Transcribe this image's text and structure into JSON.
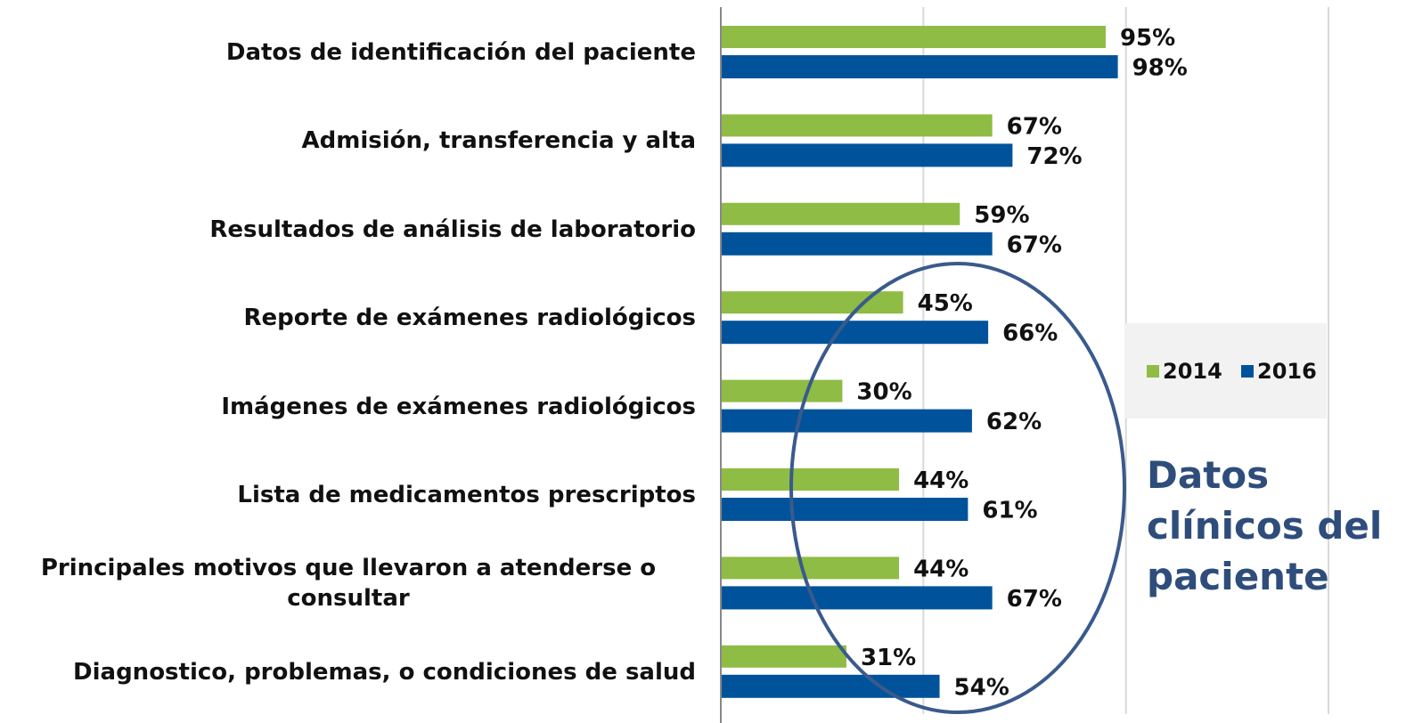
{
  "chart_data": {
    "type": "bar",
    "orientation": "horizontal",
    "categories": [
      "Datos de identificación del paciente",
      "Admisión, transferencia y alta",
      "Resultados de análisis de laboratorio",
      "Reporte de exámenes radiológicos",
      "Imágenes de exámenes radiológicos",
      "Lista de medicamentos prescriptos",
      "Principales motivos que llevaron a atenderse o consultar",
      "Diagnostico, problemas, o condiciones de salud"
    ],
    "series": [
      {
        "name": "2014",
        "color": "#8fbc45",
        "values": [
          95,
          67,
          59,
          45,
          30,
          44,
          44,
          31
        ],
        "value_labels": [
          "95%",
          "67%",
          "59%",
          "45%",
          "30%",
          "44%",
          "44%",
          "31%"
        ]
      },
      {
        "name": "2016",
        "color": "#00539b",
        "values": [
          98,
          72,
          67,
          66,
          62,
          61,
          67,
          54
        ],
        "value_labels": [
          "98%",
          "72%",
          "67%",
          "66%",
          "62%",
          "61%",
          "67%",
          "54%"
        ]
      }
    ],
    "xlim": [
      0,
      150
    ],
    "xticks": [
      0,
      50,
      100,
      150
    ],
    "grid": true,
    "annotation": "Datos clínicos del paciente"
  }
}
